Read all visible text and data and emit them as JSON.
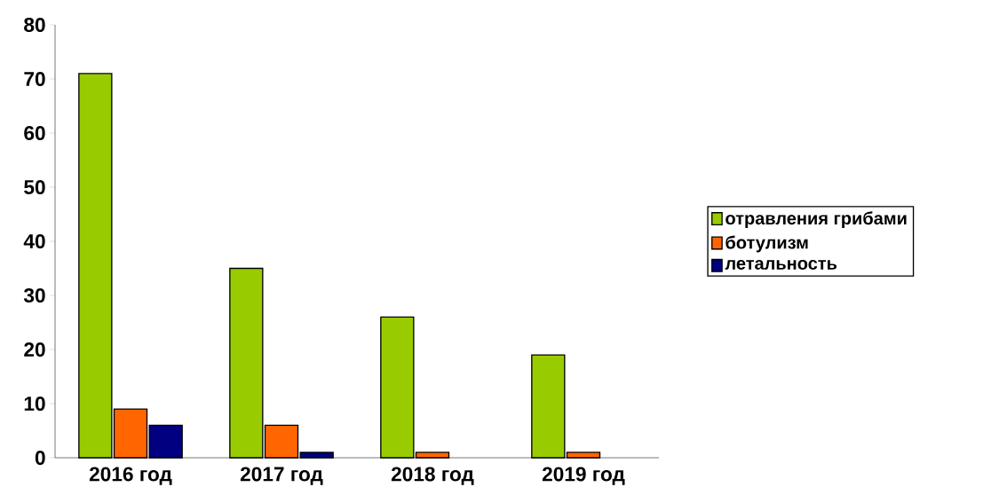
{
  "chart_data": {
    "type": "bar",
    "categories": [
      "2016 год",
      "2017 год",
      "2018 год",
      "2019 год"
    ],
    "series": [
      {
        "name": "отравления грибами",
        "color": "#99cc00",
        "values": [
          71,
          35,
          26,
          19
        ]
      },
      {
        "name": "ботулизм",
        "color": "#ff6600",
        "values": [
          9,
          6,
          1,
          1
        ]
      },
      {
        "name": "летальность",
        "color": "#000080",
        "values": [
          6,
          1,
          null,
          null
        ]
      }
    ],
    "ylim": [
      0,
      80
    ],
    "yticks": [
      0,
      10,
      20,
      30,
      40,
      50,
      60,
      70,
      80
    ],
    "grid": false,
    "legend": "right"
  }
}
